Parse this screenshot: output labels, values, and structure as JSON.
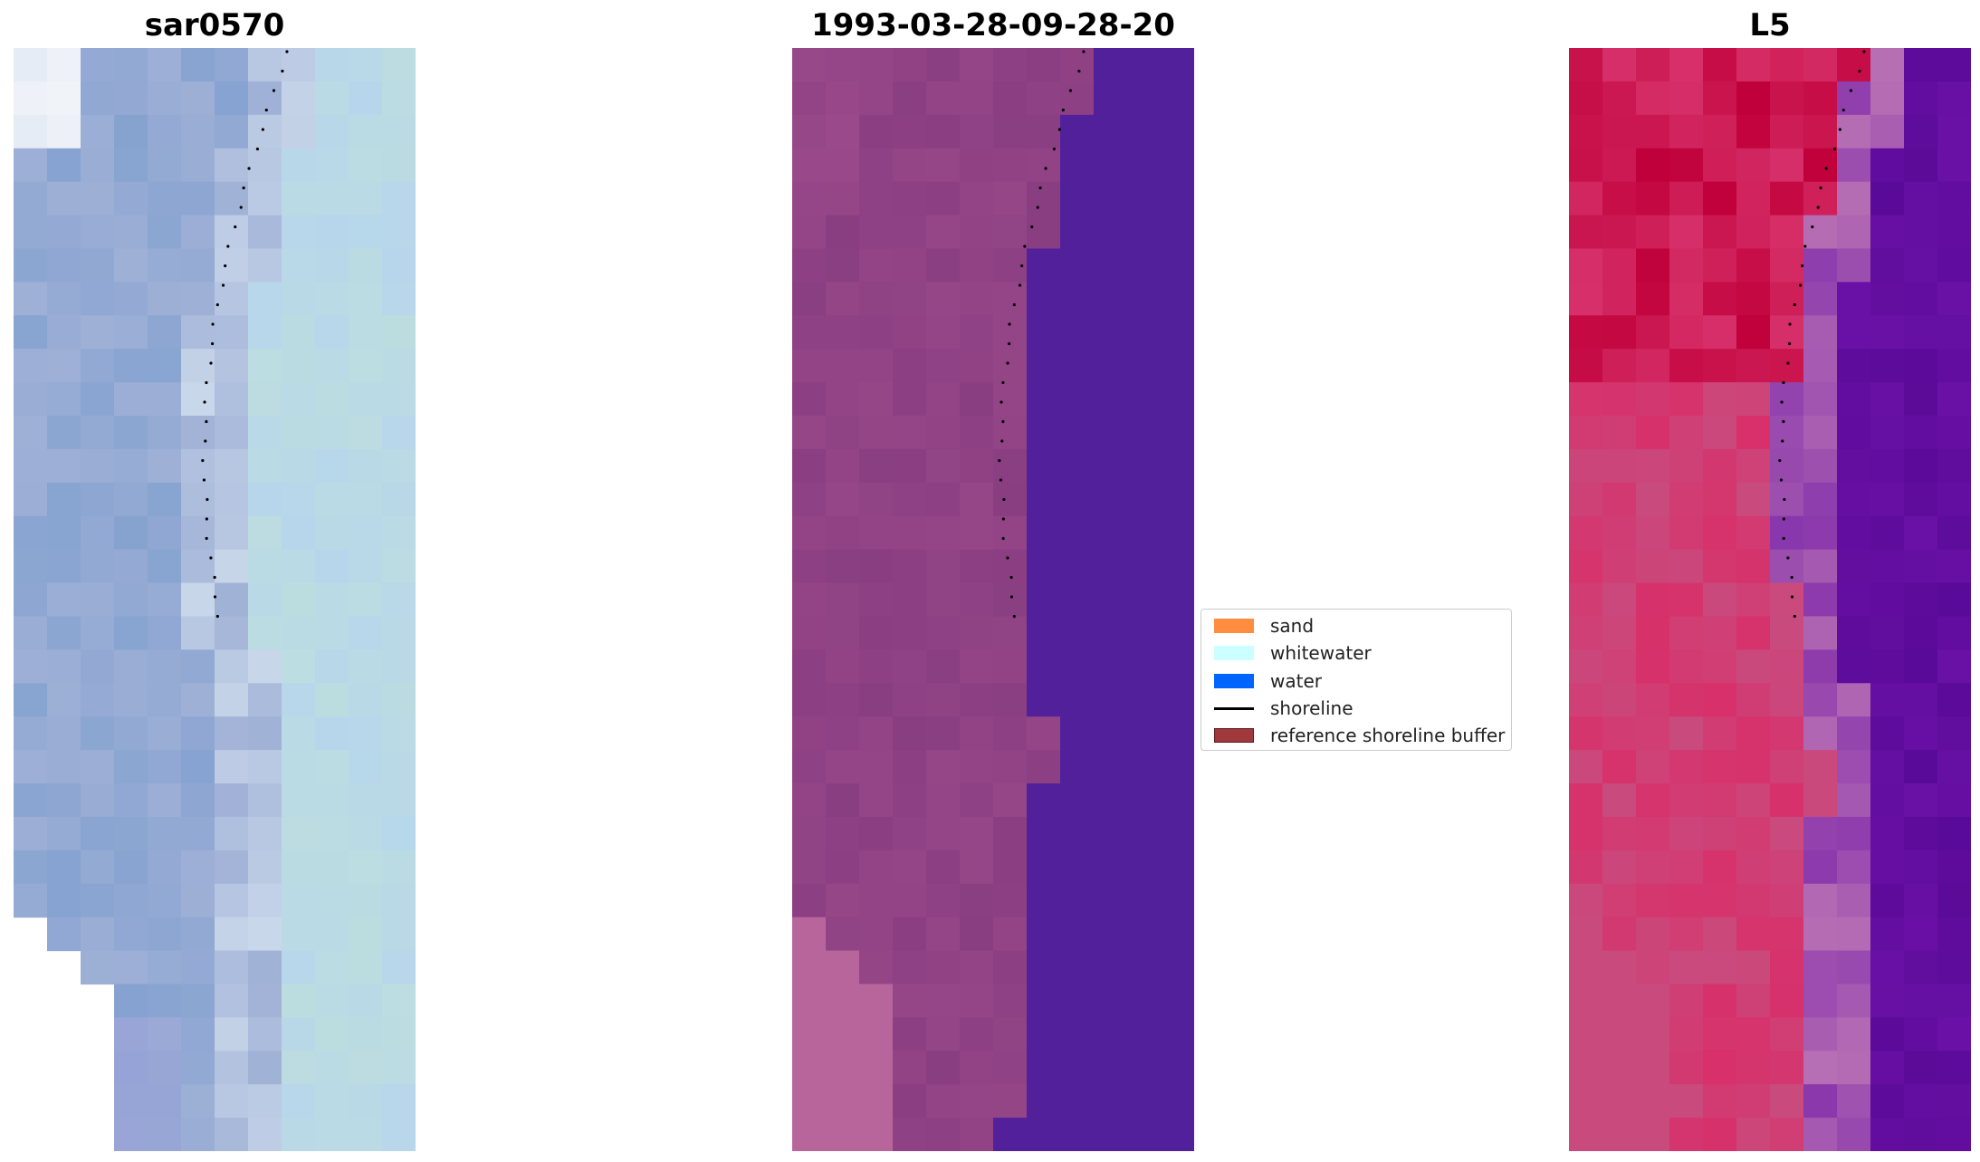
{
  "chart_data": [
    {
      "type": "heatmap",
      "title": "sar0570",
      "image": "rgb-composite",
      "colors": [
        "#f4f6fa",
        "#c9d7ea",
        "#9fb0d6",
        "#7f9fcf",
        "#a9c4e4",
        "#bcdde0",
        "#b7d6ec",
        "#96a3d6"
      ],
      "overlay": "shoreline-dots"
    },
    {
      "type": "heatmap",
      "title": "1993-03-28-09-28-20",
      "image": "classified",
      "colors": [
        "#b8659b",
        "#8a3e82",
        "#9a4a8a",
        "#52209a"
      ],
      "overlay": "shoreline-dots"
    },
    {
      "type": "heatmap",
      "title": "L5",
      "image": "index",
      "colors": [
        "#c0003a",
        "#c94b7e",
        "#d7306a",
        "#5a0a98",
        "#6a10a6",
        "#b870b4"
      ],
      "overlay": "shoreline-dots"
    }
  ],
  "legend": {
    "items": [
      {
        "label": "sand",
        "color": "#ff8c3f",
        "kind": "patch"
      },
      {
        "label": "whitewater",
        "color": "#ccffff",
        "kind": "patch"
      },
      {
        "label": "water",
        "color": "#0064ff",
        "kind": "patch"
      },
      {
        "label": "shoreline",
        "color": "#000000",
        "kind": "line"
      },
      {
        "label": "reference shoreline buffer",
        "color": "#a0393b",
        "kind": "patch-outlined"
      }
    ]
  }
}
